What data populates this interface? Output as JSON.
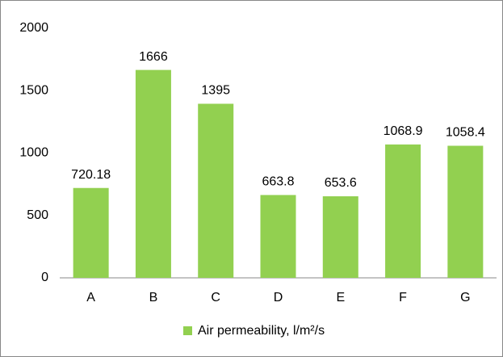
{
  "chart_data": {
    "type": "bar",
    "categories": [
      "A",
      "B",
      "C",
      "D",
      "E",
      "F",
      "G"
    ],
    "series": [
      {
        "name": "Air permeability, l/m²/s",
        "color": "#92d050",
        "values": [
          720.18,
          1666,
          1395,
          663.8,
          653.6,
          1068.9,
          1058.4
        ]
      }
    ],
    "ylim": [
      0,
      2000
    ],
    "yticks": [
      0,
      500,
      1000,
      1500,
      2000
    ],
    "grid": false,
    "legend": "bottom"
  }
}
